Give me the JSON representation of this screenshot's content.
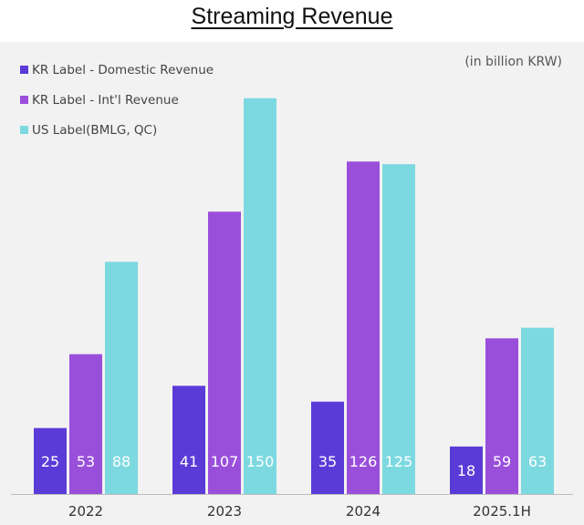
{
  "chart_data": {
    "type": "bar",
    "title": "Streaming Revenue",
    "unit_note": "(in billion KRW)",
    "categories": [
      "2022",
      "2023",
      "2024",
      "2025.1H"
    ],
    "series": [
      {
        "name": "KR Label - Domestic Revenue",
        "color": "#5b3bd8",
        "values": [
          25,
          41,
          35,
          18
        ]
      },
      {
        "name": "KR Label - Int'l Revenue",
        "color": "#9a4fdb",
        "values": [
          53,
          107,
          126,
          59
        ]
      },
      {
        "name": "US Label(BMLG, QC)",
        "color": "#7dd9e0",
        "values": [
          88,
          150,
          125,
          63
        ]
      }
    ],
    "ylim": [
      0,
      160
    ],
    "xlabel": "",
    "ylabel": "",
    "grid": false,
    "legend_position": "top-left"
  }
}
